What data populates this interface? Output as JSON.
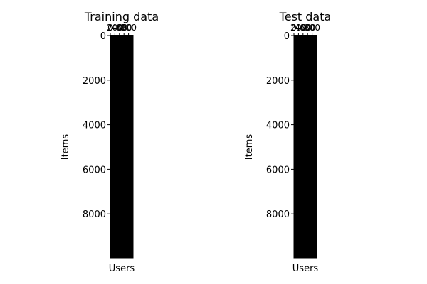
{
  "chart_data": [
    {
      "type": "heatmap",
      "title": "Training data",
      "xlabel": "Users",
      "ylabel": "Items",
      "x_ticks": [
        "0",
        "200",
        "400",
        "600",
        "800"
      ],
      "y_ticks": [
        "0",
        "2000",
        "4000",
        "6000",
        "8000"
      ],
      "ylim": [
        10000,
        0
      ],
      "xlim": [
        0,
        1000
      ],
      "matrix_fill": "dense",
      "colors": {
        "fill": "#000000",
        "edge": "#000000"
      }
    },
    {
      "type": "heatmap",
      "title": "Test data",
      "xlabel": "Users",
      "ylabel": "Items",
      "x_ticks": [
        "0",
        "200",
        "400",
        "600",
        "800"
      ],
      "y_ticks": [
        "0",
        "2000",
        "4000",
        "6000",
        "8000"
      ],
      "ylim": [
        10000,
        0
      ],
      "xlim": [
        0,
        1000
      ],
      "matrix_fill": "dense",
      "colors": {
        "fill": "#000000",
        "edge": "#000000"
      }
    }
  ]
}
